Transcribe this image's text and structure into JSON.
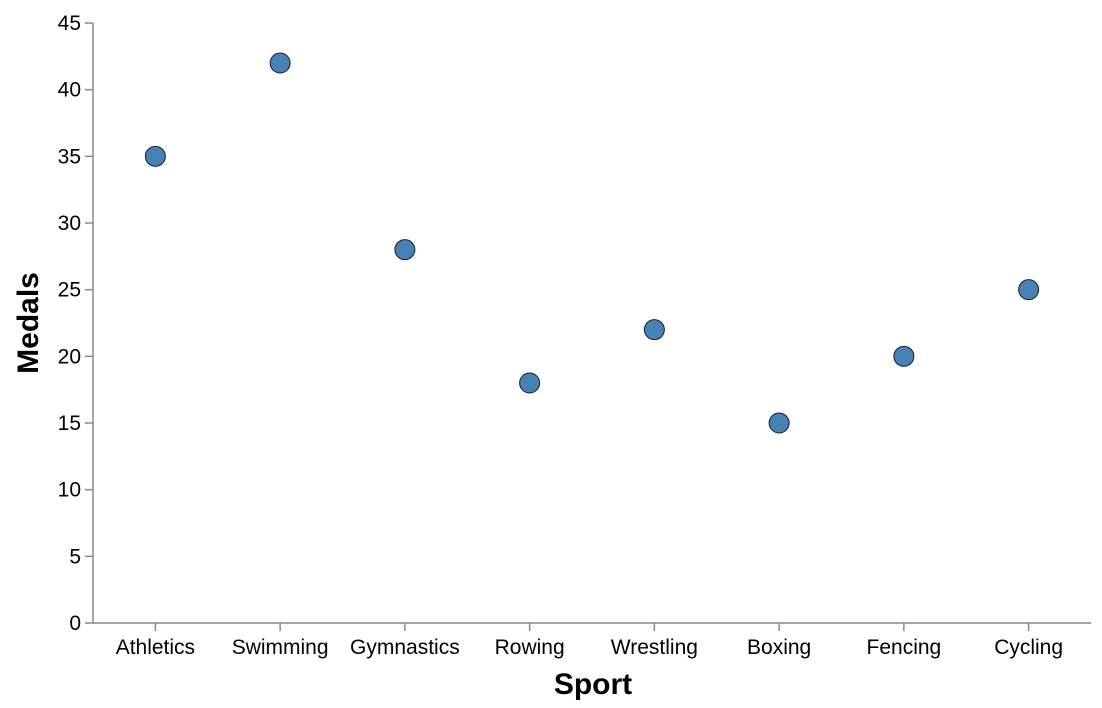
{
  "chart_data": {
    "type": "scatter",
    "categories": [
      "Athletics",
      "Swimming",
      "Gymnastics",
      "Rowing",
      "Wrestling",
      "Boxing",
      "Fencing",
      "Cycling"
    ],
    "values": [
      35,
      42,
      28,
      18,
      22,
      15,
      20,
      25
    ],
    "xlabel": "Sport",
    "ylabel": "Medals",
    "ylim": [
      0,
      45
    ],
    "yticks": [
      0,
      5,
      10,
      15,
      20,
      25,
      30,
      35,
      40,
      45
    ],
    "grid": false,
    "legend": "none",
    "colors": {
      "point_fill": "#4682b4",
      "point_stroke": "#1a1a2e",
      "axis": "#888888"
    }
  }
}
